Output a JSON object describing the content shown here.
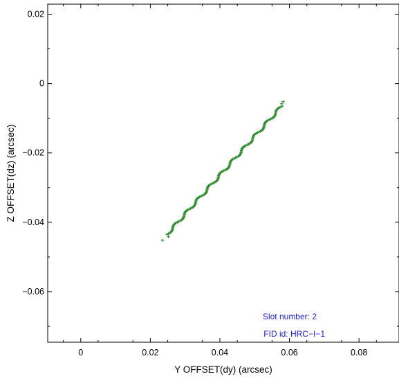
{
  "chart_data": {
    "type": "scatter",
    "xlabel": "Y OFFSET(dy) (arcsec)",
    "ylabel": "Z OFFSET(dz) (arcsec)",
    "xlim": [
      -0.0095,
      0.0915
    ],
    "ylim": [
      -0.0746,
      0.0229
    ],
    "xticks": [
      0,
      0.02,
      0.04,
      0.06,
      0.08
    ],
    "xtick_labels": [
      "0",
      "0.02",
      "0.04",
      "0.06",
      "0.08"
    ],
    "yticks": [
      0.02,
      0,
      -0.02,
      -0.04,
      -0.06
    ],
    "ytick_labels": [
      "0.02",
      "0",
      "−0.02",
      "−0.04",
      "−0.06"
    ],
    "grid": false,
    "marker": "+",
    "series": [
      {
        "color": "#2e8b2e",
        "x_range": [
          0.0248,
          0.0578
        ],
        "y_range": [
          -0.0435,
          -0.0065
        ],
        "point_count": 150,
        "outliers": [
          {
            "x": 0.0235,
            "y": -0.0452
          },
          {
            "x": 0.0252,
            "y": -0.0442
          },
          {
            "x": 0.0582,
            "y": -0.0052
          },
          {
            "x": 0.0578,
            "y": -0.0058
          }
        ]
      }
    ],
    "annotations": [
      {
        "text": "Slot number: 2",
        "color": "#1c1cd6",
        "x": 0.0485,
        "y": -0.0675
      },
      {
        "text": "FID id: HRC−I−1",
        "color": "#1c1cd6",
        "x": 0.0485,
        "y": -0.0725
      }
    ]
  }
}
